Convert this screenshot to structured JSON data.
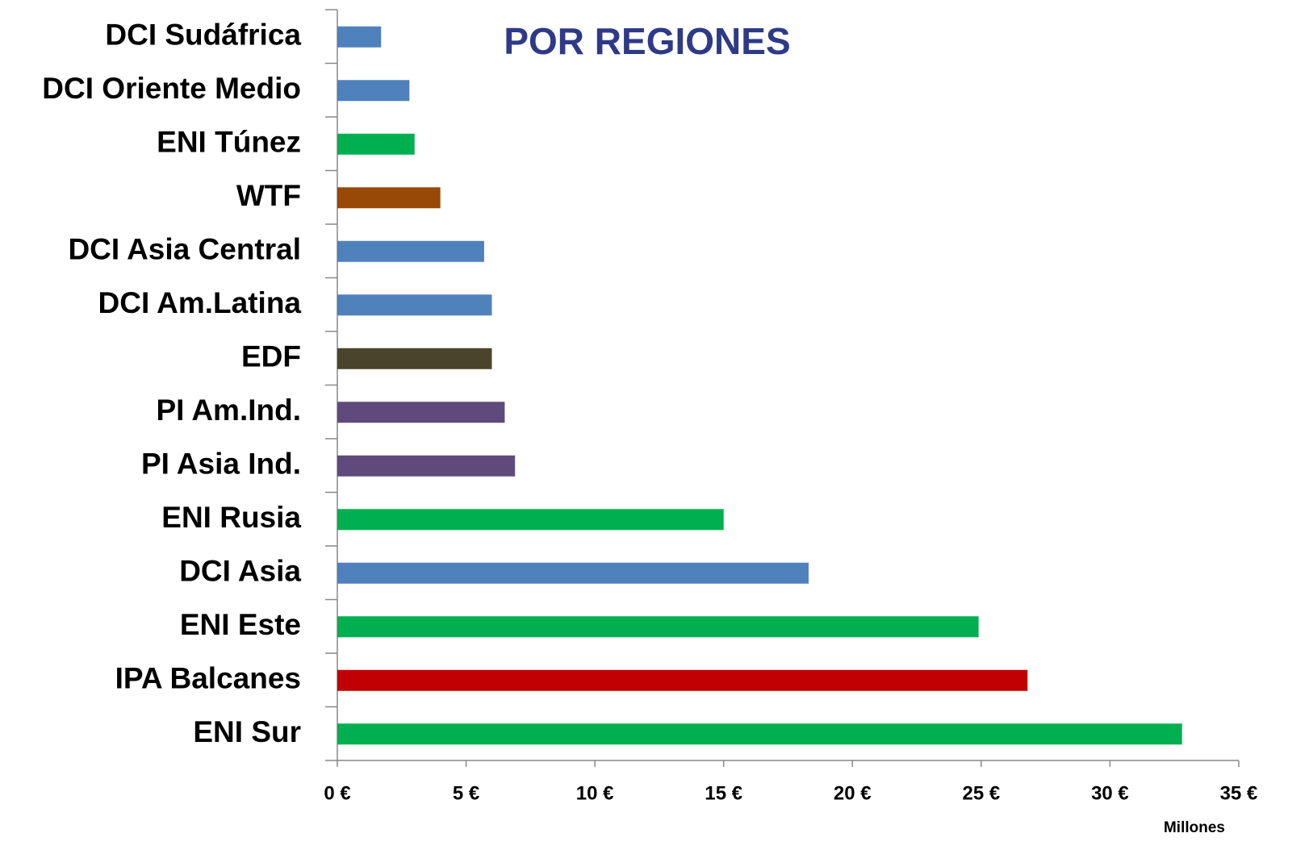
{
  "chart_data": {
    "type": "bar",
    "orientation": "horizontal",
    "title": "POR REGIONES",
    "x_axis_label": "Millones",
    "categories": [
      "DCI Sudáfrica",
      "DCI Oriente Medio",
      "ENI Túnez",
      "WTF",
      "DCI Asia Central",
      "DCI Am.Latina",
      "EDF",
      "PI Am.Ind.",
      "PI Asia Ind.",
      "ENI Rusia",
      "DCI Asia",
      "ENI Este",
      "IPA Balcanes",
      "ENI Sur"
    ],
    "values": [
      1.7,
      2.8,
      3.0,
      4.0,
      5.7,
      6.0,
      6.0,
      6.5,
      6.9,
      15.0,
      18.3,
      24.9,
      26.8,
      32.8
    ],
    "colors": [
      "#4f81bd",
      "#4f81bd",
      "#00b050",
      "#984807",
      "#4f81bd",
      "#4f81bd",
      "#4a452a",
      "#604a7b",
      "#604a7b",
      "#00b050",
      "#4f81bd",
      "#00b050",
      "#c00000",
      "#00b050"
    ],
    "xlim": [
      0,
      35
    ],
    "xticks": [
      {
        "value": 0,
        "label": "0 €"
      },
      {
        "value": 5,
        "label": "5 €"
      },
      {
        "value": 10,
        "label": "10 €"
      },
      {
        "value": 15,
        "label": "15 €"
      },
      {
        "value": 20,
        "label": "20 €"
      },
      {
        "value": 25,
        "label": "25 €"
      },
      {
        "value": 30,
        "label": "30 €"
      },
      {
        "value": 35,
        "label": "35 €"
      }
    ],
    "grid": false
  }
}
